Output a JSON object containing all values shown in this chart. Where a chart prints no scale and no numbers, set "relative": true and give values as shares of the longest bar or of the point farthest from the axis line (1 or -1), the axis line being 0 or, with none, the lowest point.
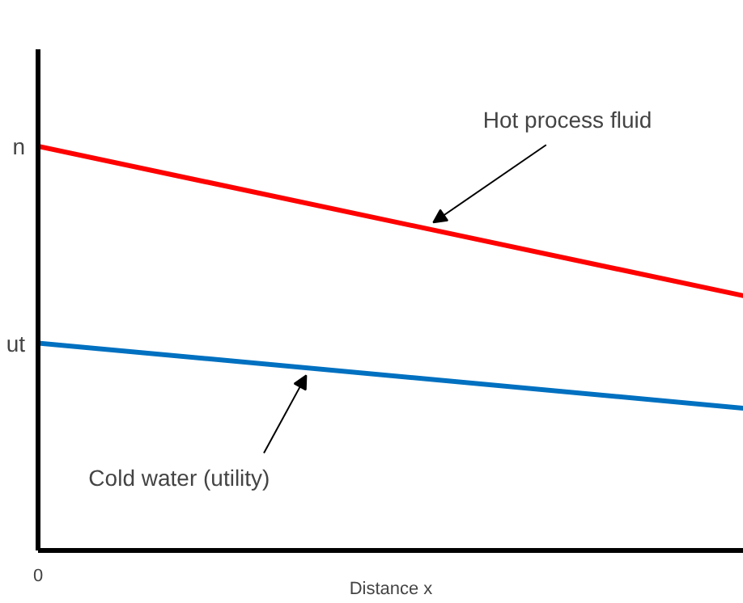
{
  "chart_data": {
    "type": "line",
    "relative": true,
    "xlabel": "Distance x",
    "categories": [
      null,
      null
    ],
    "grid": false,
    "legend": false,
    "marker": "none",
    "line_style": "solid",
    "series": [
      {
        "name": "Hot process fluid",
        "color": "#ff0000",
        "values": [
          1,
          0.63
        ]
      },
      {
        "name": "Cold water (utility)",
        "color": "#0070c0",
        "values": [
          0.513,
          0.352
        ]
      }
    ],
    "annotations": [
      "n",
      "ut",
      "0"
    ]
  }
}
